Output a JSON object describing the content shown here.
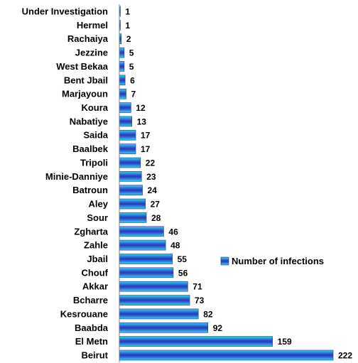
{
  "chart_data": {
    "type": "bar",
    "orientation": "horizontal",
    "categories": [
      "Under Investigation",
      "Hermel",
      "Rachaiya",
      "Jezzine",
      "West Bekaa",
      "Bent Jbail",
      "Marjayoun",
      "Koura",
      "Nabatiye",
      "Saida",
      "Baalbek",
      "Tripoli",
      "Minie-Danniye",
      "Batroun",
      "Aley",
      "Sour",
      "Zgharta",
      "Zahle",
      "Jbail",
      "Chouf",
      "Akkar",
      "Bcharre",
      "Kesrouane",
      "Baabda",
      "El Metn",
      "Beirut"
    ],
    "series": [
      {
        "name": "Number of infections",
        "values": [
          1,
          1,
          2,
          5,
          5,
          6,
          7,
          12,
          13,
          17,
          17,
          22,
          23,
          24,
          27,
          28,
          46,
          48,
          55,
          56,
          71,
          73,
          82,
          92,
          159,
          222
        ]
      }
    ],
    "title": "",
    "xlabel": "",
    "ylabel": "",
    "xlim": [
      0,
      222
    ],
    "grid": false,
    "legend_position": "right",
    "colors": {
      "bar_light": "#35d4ec",
      "bar_dark": "#2a3fc4",
      "bar_stroke": "#1d2f9a",
      "axis": "#7f7f7f"
    }
  }
}
